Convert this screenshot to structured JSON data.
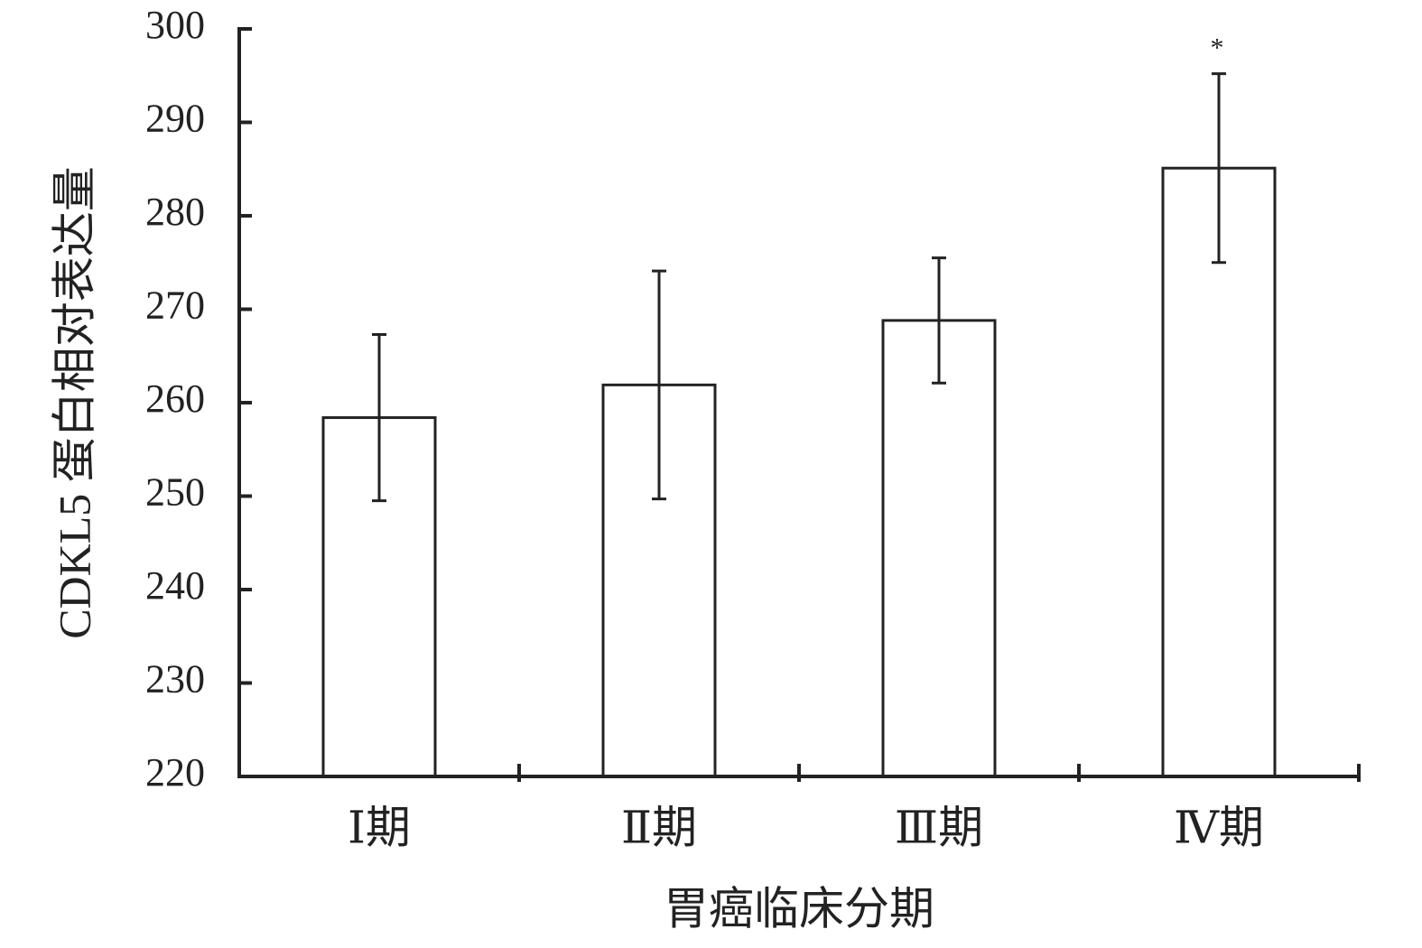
{
  "chart_data": {
    "type": "bar",
    "x_label": "胃癌临床分期",
    "y_label": "CDKL5 蛋白相对表达量",
    "categories": [
      "Ⅰ期",
      "Ⅱ期",
      "Ⅲ期",
      "Ⅳ期"
    ],
    "values": [
      258.4,
      261.9,
      268.8,
      285.1
    ],
    "errors": [
      8.9,
      12.2,
      6.7,
      10.1
    ],
    "color": "#ffffff",
    "ylim": [
      220,
      300
    ],
    "yticks": [
      220,
      230,
      240,
      250,
      260,
      270,
      280,
      290,
      300
    ],
    "annotations": [
      {
        "text": "*",
        "category": "Ⅳ期"
      }
    ]
  }
}
